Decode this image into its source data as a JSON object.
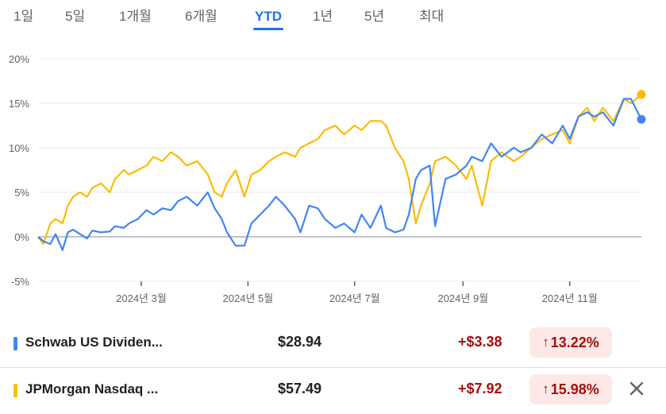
{
  "tabs": [
    {
      "label": "1일",
      "active": false
    },
    {
      "label": "5일",
      "active": false
    },
    {
      "label": "1개월",
      "active": false
    },
    {
      "label": "6개월",
      "active": false
    },
    {
      "label": "YTD",
      "active": true
    },
    {
      "label": "1년",
      "active": false
    },
    {
      "label": "5년",
      "active": false
    },
    {
      "label": "최대",
      "active": false
    }
  ],
  "chart_data": {
    "type": "line",
    "y_ticks": [
      "20%",
      "15%",
      "10%",
      "5%",
      "0%",
      "-5%"
    ],
    "y_tick_values": [
      20,
      15,
      10,
      5,
      0,
      -5
    ],
    "ylim": [
      -5,
      20
    ],
    "x_ticks": [
      "2024년 3월",
      "2024년 5월",
      "2024년 7월",
      "2024년 9월",
      "2024년 11월"
    ],
    "x_tick_positions": [
      "2024-03-01",
      "2024-05-01",
      "2024-07-01",
      "2024-09-01",
      "2024-11-01"
    ],
    "xlim": [
      "2024-01-02",
      "2024-12-12"
    ],
    "grid": "horizontal",
    "series": [
      {
        "name": "Schwab US Dividen...",
        "color": "#4285f4",
        "x": [
          "2024-01-02",
          "2024-01-05",
          "2024-01-09",
          "2024-01-12",
          "2024-01-16",
          "2024-01-19",
          "2024-01-22",
          "2024-01-26",
          "2024-01-30",
          "2024-02-02",
          "2024-02-07",
          "2024-02-12",
          "2024-02-15",
          "2024-02-20",
          "2024-02-23",
          "2024-02-28",
          "2024-03-04",
          "2024-03-08",
          "2024-03-13",
          "2024-03-18",
          "2024-03-22",
          "2024-03-27",
          "2024-04-02",
          "2024-04-08",
          "2024-04-12",
          "2024-04-16",
          "2024-04-19",
          "2024-04-24",
          "2024-04-29",
          "2024-05-03",
          "2024-05-08",
          "2024-05-13",
          "2024-05-17",
          "2024-05-22",
          "2024-05-28",
          "2024-05-31",
          "2024-06-05",
          "2024-06-10",
          "2024-06-14",
          "2024-06-20",
          "2024-06-25",
          "2024-07-01",
          "2024-07-05",
          "2024-07-10",
          "2024-07-16",
          "2024-07-19",
          "2024-07-24",
          "2024-07-29",
          "2024-08-01",
          "2024-08-05",
          "2024-08-08",
          "2024-08-13",
          "2024-08-16",
          "2024-08-22",
          "2024-08-28",
          "2024-09-03",
          "2024-09-06",
          "2024-09-12",
          "2024-09-17",
          "2024-09-23",
          "2024-09-30",
          "2024-10-04",
          "2024-10-10",
          "2024-10-16",
          "2024-10-22",
          "2024-10-28",
          "2024-11-01",
          "2024-11-06",
          "2024-11-11",
          "2024-11-15",
          "2024-11-20",
          "2024-11-26",
          "2024-12-02",
          "2024-12-06",
          "2024-12-12"
        ],
        "y": [
          0.0,
          -0.5,
          -0.8,
          0.3,
          -1.5,
          0.5,
          0.8,
          0.3,
          -0.2,
          0.7,
          0.5,
          0.6,
          1.2,
          1.0,
          1.5,
          2.0,
          3.0,
          2.5,
          3.2,
          3.0,
          4.0,
          4.5,
          3.5,
          5.0,
          3.2,
          2.0,
          0.5,
          -1.0,
          -1.0,
          1.5,
          2.5,
          3.5,
          4.5,
          3.5,
          2.0,
          0.5,
          3.5,
          3.2,
          2.0,
          1.0,
          1.5,
          0.5,
          2.5,
          1.0,
          3.5,
          1.0,
          0.5,
          0.8,
          2.5,
          6.5,
          7.5,
          8.0,
          1.2,
          6.5,
          7.0,
          8.0,
          9.0,
          8.5,
          10.5,
          9.0,
          10.0,
          9.5,
          10.0,
          11.5,
          10.5,
          12.5,
          11.0,
          13.5,
          14.0,
          13.5,
          14.0,
          12.5,
          15.5,
          15.5,
          13.2
        ]
      },
      {
        "name": "JPMorgan Nasdaq ...",
        "color": "#fbbc04",
        "x": [
          "2024-01-02",
          "2024-01-05",
          "2024-01-09",
          "2024-01-12",
          "2024-01-16",
          "2024-01-19",
          "2024-01-22",
          "2024-01-26",
          "2024-01-30",
          "2024-02-02",
          "2024-02-07",
          "2024-02-12",
          "2024-02-15",
          "2024-02-20",
          "2024-02-23",
          "2024-02-28",
          "2024-03-04",
          "2024-03-08",
          "2024-03-13",
          "2024-03-18",
          "2024-03-22",
          "2024-03-27",
          "2024-04-02",
          "2024-04-08",
          "2024-04-12",
          "2024-04-16",
          "2024-04-19",
          "2024-04-24",
          "2024-04-29",
          "2024-05-03",
          "2024-05-08",
          "2024-05-13",
          "2024-05-17",
          "2024-05-22",
          "2024-05-28",
          "2024-05-31",
          "2024-06-05",
          "2024-06-10",
          "2024-06-14",
          "2024-06-20",
          "2024-06-25",
          "2024-07-01",
          "2024-07-05",
          "2024-07-10",
          "2024-07-16",
          "2024-07-19",
          "2024-07-24",
          "2024-07-29",
          "2024-08-01",
          "2024-08-05",
          "2024-08-08",
          "2024-08-13",
          "2024-08-16",
          "2024-08-22",
          "2024-08-28",
          "2024-09-03",
          "2024-09-06",
          "2024-09-12",
          "2024-09-17",
          "2024-09-23",
          "2024-09-30",
          "2024-10-04",
          "2024-10-10",
          "2024-10-16",
          "2024-10-22",
          "2024-10-28",
          "2024-11-01",
          "2024-11-06",
          "2024-11-11",
          "2024-11-15",
          "2024-11-20",
          "2024-11-26",
          "2024-12-02",
          "2024-12-06",
          "2024-12-12"
        ],
        "y": [
          0.0,
          -0.8,
          1.5,
          2.0,
          1.5,
          3.5,
          4.5,
          5.0,
          4.5,
          5.5,
          6.0,
          5.0,
          6.5,
          7.5,
          7.0,
          7.5,
          8.0,
          9.0,
          8.5,
          9.5,
          9.0,
          8.0,
          8.5,
          7.0,
          5.0,
          4.5,
          6.0,
          7.5,
          4.5,
          7.0,
          7.5,
          8.5,
          9.0,
          9.5,
          9.0,
          10.0,
          10.5,
          11.0,
          12.0,
          12.5,
          11.5,
          12.5,
          12.0,
          13.0,
          13.0,
          12.5,
          10.0,
          8.5,
          6.5,
          1.5,
          3.5,
          6.0,
          8.5,
          9.0,
          8.0,
          6.5,
          8.0,
          3.5,
          8.5,
          9.5,
          8.5,
          9.0,
          10.0,
          11.0,
          11.5,
          12.0,
          10.5,
          13.5,
          14.5,
          13.0,
          14.5,
          13.0,
          15.5,
          15.0,
          16.0
        ]
      }
    ]
  },
  "holdings": [
    {
      "name": "Schwab US Dividen...",
      "price": "$28.94",
      "change": "+$3.38",
      "arrow": "↑",
      "pct": "13.22%",
      "color": "#4285f4",
      "removable": false
    },
    {
      "name": "JPMorgan Nasdaq ...",
      "price": "$57.49",
      "change": "+$7.92",
      "arrow": "↑",
      "pct": "15.98%",
      "color": "#fbbc04",
      "removable": true
    }
  ],
  "icons": {
    "close": "close-icon",
    "arrow": "arrow-up-icon"
  }
}
